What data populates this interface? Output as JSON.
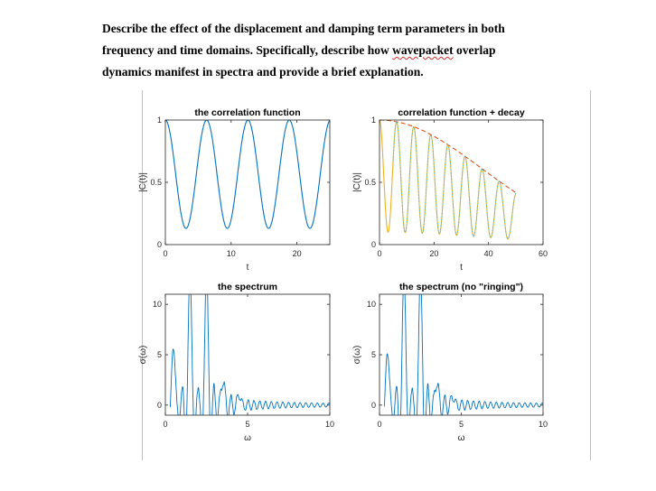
{
  "question": {
    "line1": "Describe the effect of the displacement and damping term parameters in both",
    "line2": "frequency and time domains. Specifically, describe how",
    "line2_flagged": "wavepacket",
    "line2_end": " overlap",
    "line3": "dynamics manifest in spectra and provide a brief explanation."
  },
  "colors": {
    "blue": "#0072bd",
    "yellow": "#edb120",
    "red_dashed": "#d95319",
    "cyan_dotted": "#4dbeee",
    "axis": "#262626",
    "border": "#a9c4e4"
  },
  "chart_data": [
    {
      "type": "line",
      "title": "the correlation function",
      "xlabel": "t",
      "ylabel": "|C(t)|",
      "xlim": [
        0,
        25
      ],
      "ylim": [
        0,
        1
      ],
      "xticks": [
        "0",
        "10",
        "20"
      ],
      "xtick_values": [
        0,
        10,
        20
      ],
      "yticks": [
        "0",
        "0.5",
        "1"
      ],
      "ytick_values": [
        0,
        0.5,
        1
      ],
      "series": [
        {
          "color": "blue",
          "function": "periodic",
          "period": 6.28,
          "min": 0.13,
          "max": 1.0,
          "x_range": [
            0,
            25
          ]
        }
      ]
    },
    {
      "type": "line",
      "title": "correlation function + decay",
      "xlabel": "t",
      "ylabel": "|C(t)|",
      "xlim": [
        0,
        60
      ],
      "ylim": [
        0,
        1
      ],
      "xticks": [
        "0",
        "20",
        "40",
        "60"
      ],
      "xtick_values": [
        0,
        20,
        40,
        60
      ],
      "yticks": [
        "0",
        "0.5",
        "1"
      ],
      "ytick_values": [
        0,
        0.5,
        1
      ],
      "series": [
        {
          "color": "yellow",
          "function": "periodic_decay",
          "period": 6.28,
          "min": 0.1,
          "max": 1.0,
          "decay": 0.0035,
          "x_range": [
            0,
            50
          ]
        },
        {
          "color": "red_dashed",
          "function": "envelope",
          "decay": 0.0035,
          "x_range": [
            0,
            50
          ]
        },
        {
          "color": "cyan_dotted",
          "function": "periodic_decay",
          "period": 6.28,
          "min": 0.1,
          "max": 1.0,
          "decay": 0.0035,
          "x_range": [
            5,
            50
          ]
        }
      ]
    },
    {
      "type": "line",
      "title": "the spectrum",
      "xlabel": "ω",
      "ylabel": "σ(ω)",
      "xlim": [
        0,
        10
      ],
      "ylim": [
        -1,
        11
      ],
      "xticks": [
        "0",
        "5",
        "10"
      ],
      "xtick_values": [
        0,
        5,
        10
      ],
      "yticks": [
        "0",
        "5",
        "10"
      ],
      "ytick_values": [
        0,
        5,
        10
      ],
      "peaks": [
        {
          "x": 1.5,
          "height": 14
        },
        {
          "x": 2.5,
          "height": 14
        },
        {
          "x": 0.5,
          "height": 6.5
        },
        {
          "x": 3.5,
          "height": 3.0
        },
        {
          "x": 4.5,
          "height": 1.2
        }
      ],
      "ringing_amplitude": 1.5,
      "x_range": [
        0.3,
        10
      ],
      "series": [
        {
          "color": "blue"
        }
      ]
    },
    {
      "type": "line",
      "title": "the spectrum (no \"ringing\")",
      "xlabel": "ω",
      "ylabel": "σ(ω)",
      "xlim": [
        0,
        10
      ],
      "ylim": [
        -1,
        11
      ],
      "xticks": [
        "0",
        "5",
        "10"
      ],
      "xtick_values": [
        0,
        5,
        10
      ],
      "yticks": [
        "0",
        "5",
        "10"
      ],
      "ytick_values": [
        0,
        5,
        10
      ],
      "peaks": [
        {
          "x": 1.5,
          "height": 14
        },
        {
          "x": 2.5,
          "height": 14
        },
        {
          "x": 0.5,
          "height": 6.0
        },
        {
          "x": 3.5,
          "height": 2.8
        },
        {
          "x": 4.5,
          "height": 1.0
        }
      ],
      "ringing_amplitude": 1.2,
      "x_range": [
        0.3,
        10
      ],
      "series": [
        {
          "color": "blue"
        }
      ]
    }
  ]
}
